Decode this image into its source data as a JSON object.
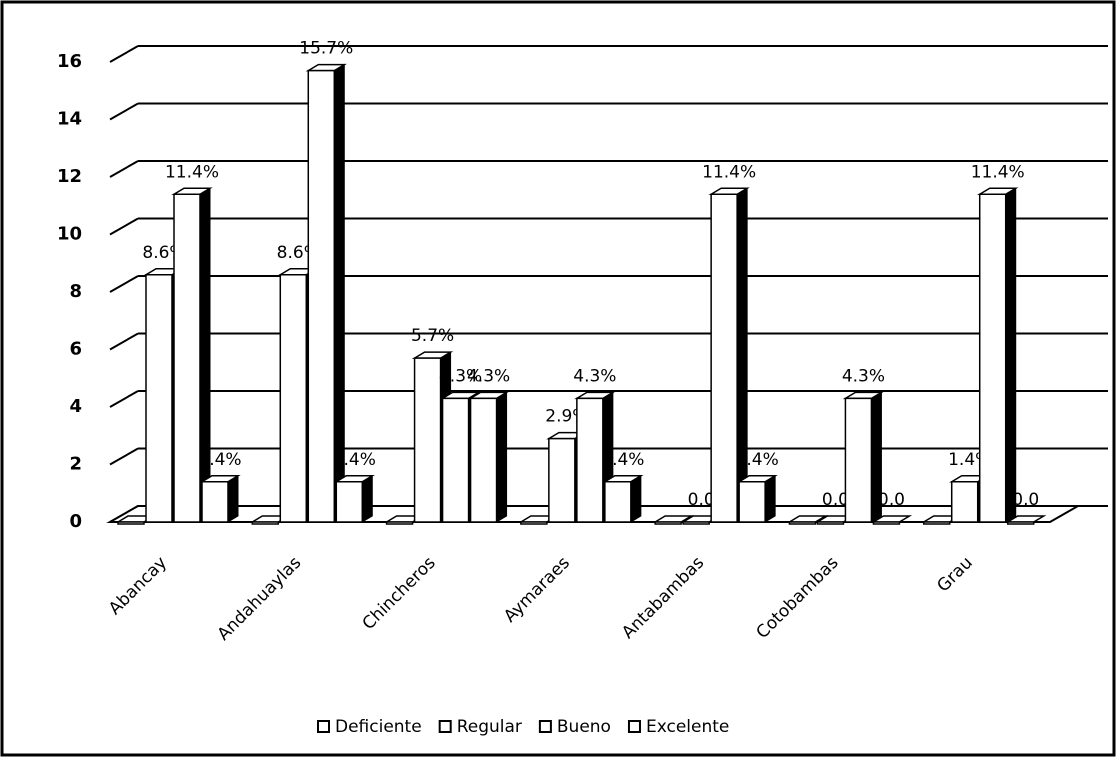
{
  "chart_data": {
    "type": "bar3d",
    "categories": [
      "Abancay",
      "Andahuaylas",
      "Chincheros",
      "Aymaraes",
      "Antabambas",
      "Cotobambas",
      "Grau"
    ],
    "series": [
      {
        "name": "Deficiente",
        "color": "#ffffff",
        "values": [
          0,
          0,
          0,
          0,
          0,
          0,
          0
        ],
        "value_labels": [
          null,
          null,
          null,
          null,
          null,
          null,
          null
        ]
      },
      {
        "name": "Regular",
        "color": "#ffffff",
        "values": [
          8.6,
          8.6,
          5.7,
          2.9,
          0,
          0,
          1.4
        ],
        "value_labels": [
          "8.6%",
          "8.6%",
          "5.7%",
          "2.9%",
          "0,0",
          "0,0",
          "1.4%"
        ]
      },
      {
        "name": "Bueno",
        "color": "#ffffff",
        "values": [
          11.4,
          15.7,
          4.3,
          4.3,
          11.4,
          4.3,
          11.4
        ],
        "value_labels": [
          "11.4%",
          "15.7%",
          "4.3%",
          "4.3%",
          "11.4%",
          "4.3%",
          "11.4%"
        ]
      },
      {
        "name": "Excelente",
        "color": "#ffffff",
        "values": [
          1.4,
          1.4,
          4.3,
          1.4,
          1.4,
          0,
          0
        ],
        "value_labels": [
          "1.4%",
          "1.4%",
          "4.3%",
          "1.4%",
          "1.4%",
          "0,0",
          "0,0"
        ]
      }
    ],
    "ylim": [
      0,
      16
    ],
    "yticks": [
      0,
      2,
      4,
      6,
      8,
      10,
      12,
      14,
      16
    ],
    "grid": true,
    "legend": "bottom"
  }
}
